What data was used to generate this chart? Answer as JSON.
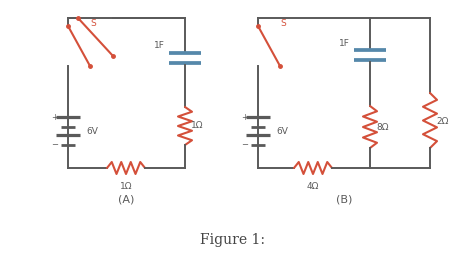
{
  "wire_color": "#5a5a5a",
  "component_color": "#d4503a",
  "capacitor_color": "#5588aa",
  "battery_color": "#5588aa",
  "bg_color": "#ffffff",
  "title": "Figure 1:",
  "label_A": "(A)",
  "label_B": "(B)",
  "wire_lw": 1.4,
  "comp_lw": 1.5,
  "cap_lw": 2.2,
  "batt_lw": 2.0,
  "text_color": "#5a5a5a",
  "comp_text_color": "#5a5a5a"
}
